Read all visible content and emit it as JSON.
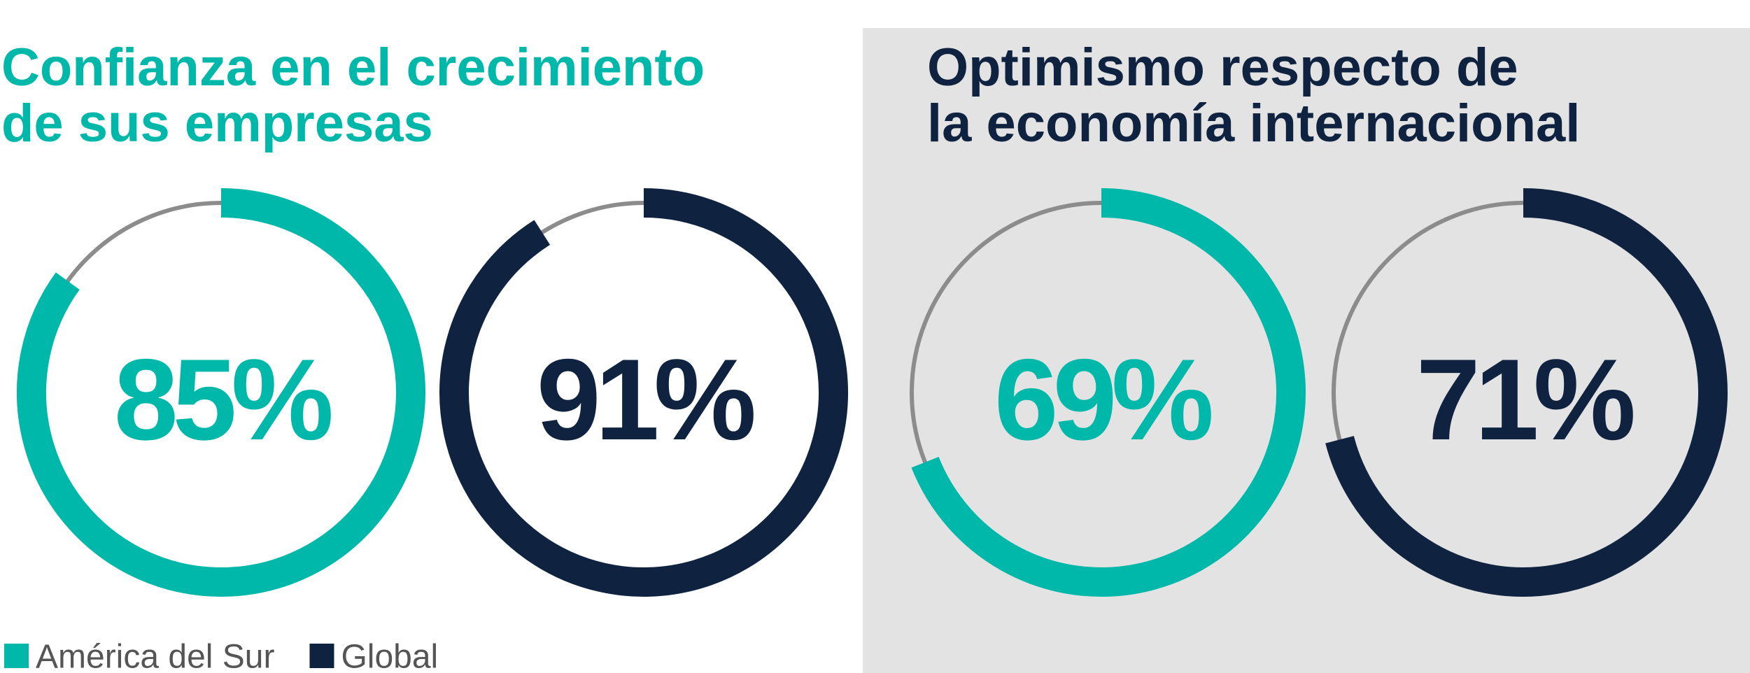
{
  "chart_data": [
    {
      "type": "gauge",
      "title": [
        "Confianza en el crecimiento",
        "de sus empresas"
      ],
      "title_color": "#00b8a9",
      "values": [
        85,
        91
      ],
      "value_labels": [
        "85%",
        "91%"
      ],
      "colors": [
        "#00b8a9",
        "#0f2340"
      ]
    },
    {
      "type": "gauge",
      "title": [
        "Optimismo respecto de",
        "la economía internacional"
      ],
      "title_color": "#0f2340",
      "background": "#e3e3e3",
      "values": [
        69,
        71
      ],
      "value_labels": [
        "69%",
        "71%"
      ],
      "colors": [
        "#00b8a9",
        "#0f2340"
      ]
    }
  ],
  "legend": [
    {
      "name": "América del Sur",
      "color": "#00b8a9"
    },
    {
      "name": "Global",
      "color": "#0f2340"
    }
  ]
}
